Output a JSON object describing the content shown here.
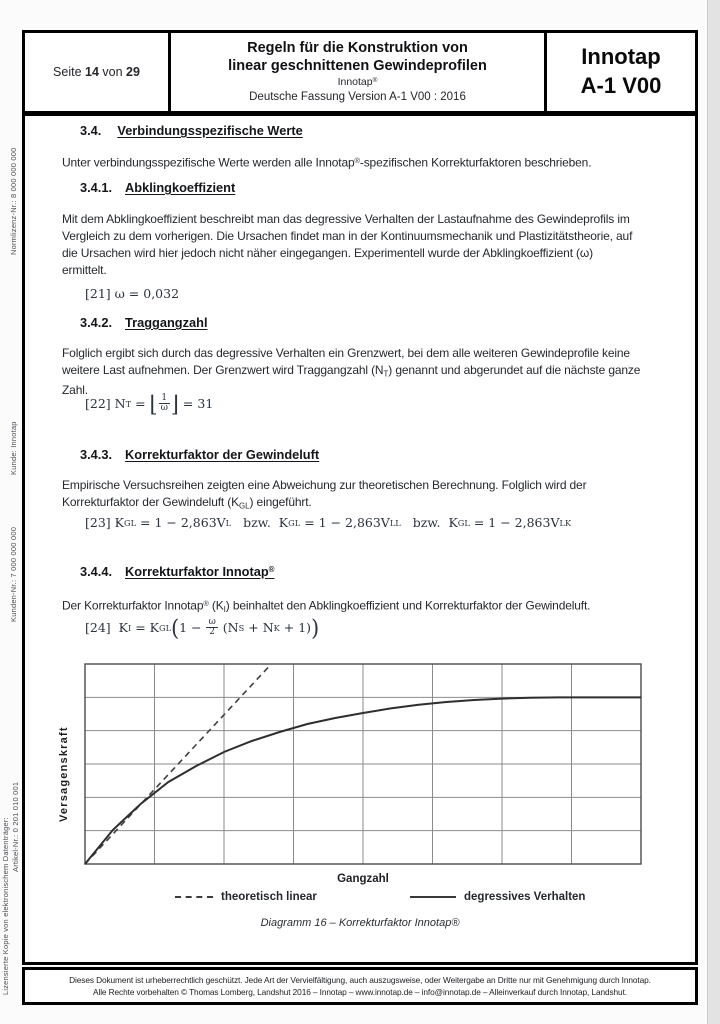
{
  "colors": {
    "paper": "#ffffff",
    "ink": "#23262b",
    "border": "#000000"
  },
  "header": {
    "page": [
      "Seite ",
      {
        "b": "14"
      },
      " von ",
      {
        "b": "29"
      }
    ],
    "title_line1": "Regeln für die Konstruktion von",
    "title_line2": "linear geschnittenen Gewindeprofilen",
    "title_brand": [
      "Innotap",
      {
        "sup": "®"
      }
    ],
    "title_version": "Deutsche Fassung Version A-1 V00 : 2016",
    "logo_line1": "Innotap",
    "logo_line2": "A-1 V00"
  },
  "sidebar": {
    "norm_license": "Normlizenz-Nr.:  8 000 000 000",
    "customer": "Kunde:  Innotap",
    "customer_number": "Kunden-Nr.:  7 000 000 000",
    "article_number": "Artikel-Nr.: 0 201 010 001",
    "license_note": "Lizensierte Kopie von elektronischem Datenträger:"
  },
  "content": {
    "h34": {
      "num": "3.4.",
      "title": "Verbindungsspezifische Werte"
    },
    "p1": [
      "Unter verbindungsspezifische Werte werden alle Innotap",
      {
        "sup": "®"
      },
      "-spezifischen Korrekturfaktoren beschrieben."
    ],
    "h341": {
      "num": "3.4.1.",
      "title": "Abklingkoeffizient"
    },
    "p2_lines": [
      [
        "Mit dem Abklingkoeffizient beschreibt man das degressive Verhalten der Lastaufnahme des Gewindeprofils im"
      ],
      [
        "Vergleich zu dem vorherigen. Die Ursachen findet man in der Kontinuumsmechanik und Plastizitätstheorie, auf"
      ],
      [
        "die Ursachen wird hier jedoch nicht näher eingegangen. Experimentell wurde der Abklingkoeffizient (ω)"
      ],
      [
        "ermittelt."
      ]
    ],
    "eq21": [
      "[21] ω = 0,032"
    ],
    "h342": {
      "num": "3.4.2.",
      "title": "Traggangzahl"
    },
    "p3_lines": [
      [
        "Folglich ergibt sich durch das degressive Verhalten ein Grenzwert, bei dem alle weiteren Gewindeprofile keine"
      ],
      [
        "weitere Last aufnehmen. Der Grenzwert wird Traggangzahl (N",
        {
          "sub": "T"
        },
        ") genannt und abgerundet auf die nächste ganze"
      ],
      [
        "Zahl."
      ]
    ],
    "eq22": [
      "[22] N",
      {
        "sub": "T"
      },
      " = ",
      {
        "big": "⌊"
      },
      {
        "frac": [
          "1",
          "ω"
        ]
      },
      {
        "big": "⌋"
      },
      " = 31"
    ],
    "h343": {
      "num": "3.4.3.",
      "title": "Korrekturfaktor der Gewindeluft"
    },
    "p4_lines": [
      [
        "Empirische Versuchsreihen zeigten eine Abweichung zur theoretischen Berechnung. Folglich wird der"
      ],
      [
        "Korrekturfaktor der Gewindeluft (K",
        {
          "sub": "GL"
        },
        ") eingeführt."
      ]
    ],
    "eq23": [
      "[23] K",
      {
        "sub": "GL"
      },
      " = 1 − 2,863V",
      {
        "sub": "L"
      },
      "   bzw.  K",
      {
        "sub": "GL"
      },
      " = 1 − 2,863V",
      {
        "sub": "LL"
      },
      "   bzw.  K",
      {
        "sub": "GL"
      },
      " = 1 − 2,863V",
      {
        "sub": "LK"
      }
    ],
    "h344": {
      "num": "3.4.4.",
      "title_rich": [
        "Korrekturfaktor Innotap",
        {
          "sup": "®"
        }
      ]
    },
    "p5": [
      "Der Korrekturfaktor Innotap",
      {
        "sup": "®"
      },
      " (K",
      {
        "sub": "I"
      },
      ") beinhaltet den Abklingkoeffizient und Korrekturfaktor der Gewindeluft."
    ],
    "eq24": [
      "[24]  K",
      {
        "sub": "I"
      },
      " = K",
      {
        "sub": "GL"
      },
      " ",
      {
        "big": "("
      },
      "1 − ",
      {
        "frac": [
          "ω",
          "2"
        ]
      },
      " (N",
      {
        "sub": "S"
      },
      " + N",
      {
        "sub": "K"
      },
      " + 1)",
      {
        "big": ")"
      }
    ]
  },
  "chart_data": {
    "type": "line",
    "title": "Diagramm 16 – Korrekturfaktor Innotap®",
    "xlabel": "Gangzahl",
    "ylabel": "Versagenskraft",
    "grid": {
      "columns": 8,
      "rows": 6,
      "shown": true,
      "numeric_ticks": false
    },
    "axis_range_normalized": {
      "x": [
        0,
        1
      ],
      "y": [
        0,
        1
      ]
    },
    "legend": [
      {
        "name": "theoretisch linear",
        "style": "dashed"
      },
      {
        "name": "degressives Verhalten",
        "style": "solid"
      }
    ],
    "series": [
      {
        "name": "theoretisch linear",
        "style": "dashed",
        "points": [
          [
            0,
            0
          ],
          [
            0.335,
            1.0
          ]
        ]
      },
      {
        "name": "degressives Verhalten",
        "style": "solid",
        "points": [
          [
            0,
            0
          ],
          [
            0.05,
            0.17
          ],
          [
            0.1,
            0.3
          ],
          [
            0.15,
            0.41
          ],
          [
            0.2,
            0.49
          ],
          [
            0.25,
            0.56
          ],
          [
            0.3,
            0.615
          ],
          [
            0.35,
            0.66
          ],
          [
            0.4,
            0.7
          ],
          [
            0.45,
            0.73
          ],
          [
            0.5,
            0.755
          ],
          [
            0.55,
            0.778
          ],
          [
            0.6,
            0.796
          ],
          [
            0.65,
            0.81
          ],
          [
            0.7,
            0.82
          ],
          [
            0.75,
            0.827
          ],
          [
            0.8,
            0.831
          ],
          [
            0.85,
            0.833
          ],
          [
            0.9,
            0.833
          ],
          [
            0.95,
            0.833
          ],
          [
            1,
            0.833
          ]
        ]
      }
    ],
    "y_asymptote": 0.833
  },
  "footer": {
    "line1": "Dieses Dokument ist urheberrechtlich geschützt. Jede Art der Vervielfältigung, auch auszugsweise, oder Weitergabe an Dritte nur mit Genehmigung durch Innotap.",
    "line2": "Alle Rechte vorbehalten © Thomas Lomberg, Landshut 2016 – Innotap – www.innotap.de – info@innotap.de – Alleinverkauf durch Innotap, Landshut."
  }
}
